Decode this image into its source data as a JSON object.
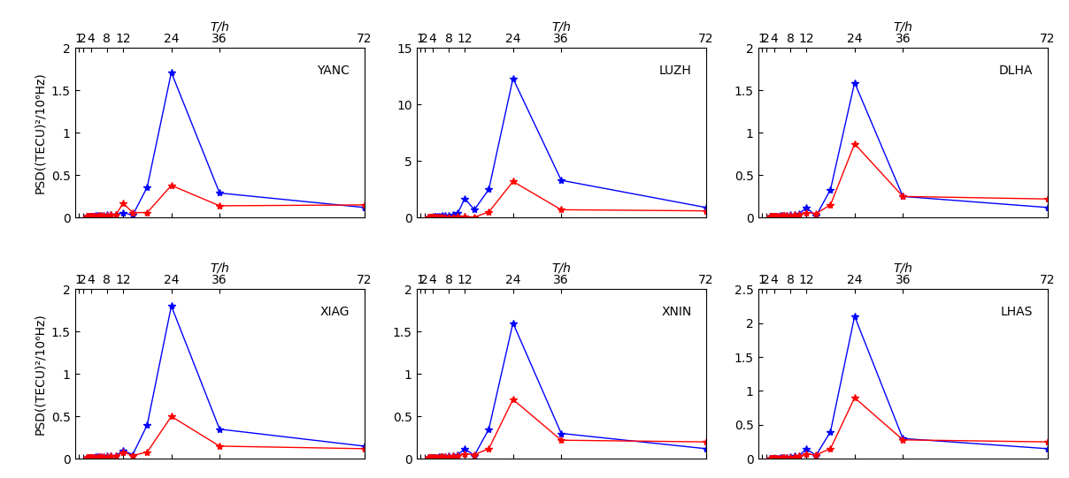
{
  "chart_data": [
    {
      "type": "line",
      "title": "YANC",
      "x_label": "T/h",
      "y_label": "PSD((TECU)²/10⁶Hz)",
      "x": [
        72,
        36,
        24,
        18,
        14.4,
        12,
        10.29,
        9,
        8,
        7.2,
        6.55,
        6,
        5.54,
        5.14,
        4.8,
        4.5,
        4.24,
        4,
        3.79,
        3.6,
        3.43,
        3.27,
        3.13,
        3
      ],
      "xlim": [
        0,
        72
      ],
      "xticks": [
        1,
        2,
        4,
        8,
        12,
        24,
        36,
        72
      ],
      "ylim": [
        0,
        2
      ],
      "yticks": [
        0,
        0.5,
        1,
        1.5,
        2
      ],
      "series": [
        {
          "color": "#0000ff",
          "marker": "*",
          "values": [
            0.12,
            0.29,
            1.71,
            0.36,
            0.03,
            0.06,
            0.04,
            0.03,
            0.03,
            0.02,
            0.02,
            0.02,
            0.02,
            0.02,
            0.01,
            0.01,
            0.01,
            0.01,
            0.01,
            0.01,
            0.01,
            0.01,
            0.01,
            0.01
          ]
        },
        {
          "color": "#ff0000",
          "marker": "*",
          "values": [
            0.15,
            0.14,
            0.38,
            0.06,
            0.06,
            0.17,
            0.04,
            0.03,
            0.02,
            0.02,
            0.02,
            0.02,
            0.01,
            0.01,
            0.01,
            0.01,
            0.01,
            0.01,
            0.01,
            0.01,
            0.01,
            0.01,
            0.01,
            0.01
          ]
        }
      ]
    },
    {
      "type": "line",
      "title": "LUZH",
      "x_label": "T/h",
      "x": [
        72,
        36,
        24,
        18,
        14.4,
        12,
        10.29,
        9,
        8,
        7.2,
        6.55,
        6,
        5.54,
        5.14,
        4.8,
        4.5,
        4.24,
        4,
        3.79,
        3.6,
        3.43,
        3.27,
        3.13,
        3
      ],
      "xlim": [
        0,
        72
      ],
      "xticks": [
        1,
        2,
        4,
        8,
        12,
        24,
        36,
        72
      ],
      "ylim": [
        0,
        15
      ],
      "yticks": [
        0,
        5,
        10,
        15
      ],
      "series": [
        {
          "color": "#0000ff",
          "marker": "*",
          "values": [
            0.9,
            3.3,
            12.3,
            2.5,
            0.7,
            1.7,
            0.4,
            0.3,
            0.2,
            0.2,
            0.15,
            0.12,
            0.1,
            0.1,
            0.08,
            0.08,
            0.06,
            0.06,
            0.05,
            0.05,
            0.04,
            0.04,
            0.04,
            0.03
          ]
        },
        {
          "color": "#ff0000",
          "marker": "*",
          "values": [
            0.6,
            0.7,
            3.2,
            0.5,
            0.05,
            0.1,
            0.08,
            0.06,
            0.05,
            0.05,
            0.04,
            0.04,
            0.03,
            0.03,
            0.03,
            0.03,
            0.02,
            0.02,
            0.02,
            0.02,
            0.02,
            0.02,
            0.02,
            0.02
          ]
        }
      ]
    },
    {
      "type": "line",
      "title": "DLHA",
      "x_label": "T/h",
      "x": [
        72,
        36,
        24,
        18,
        14.4,
        12,
        10.29,
        9,
        8,
        7.2,
        6.55,
        6,
        5.54,
        5.14,
        4.8,
        4.5,
        4.24,
        4,
        3.79,
        3.6,
        3.43,
        3.27,
        3.13,
        3
      ],
      "xlim": [
        0,
        72
      ],
      "xticks": [
        1,
        2,
        4,
        8,
        12,
        24,
        36,
        72
      ],
      "ylim": [
        0,
        2
      ],
      "yticks": [
        0,
        0.5,
        1,
        1.5,
        2
      ],
      "series": [
        {
          "color": "#0000ff",
          "marker": "*",
          "values": [
            0.12,
            0.25,
            1.59,
            0.33,
            0.02,
            0.12,
            0.05,
            0.03,
            0.03,
            0.02,
            0.02,
            0.02,
            0.02,
            0.01,
            0.01,
            0.01,
            0.01,
            0.01,
            0.01,
            0.01,
            0.01,
            0.01,
            0.01,
            0.01
          ]
        },
        {
          "color": "#ff0000",
          "marker": "*",
          "values": [
            0.22,
            0.25,
            0.87,
            0.15,
            0.05,
            0.06,
            0.04,
            0.03,
            0.02,
            0.02,
            0.02,
            0.02,
            0.01,
            0.01,
            0.01,
            0.01,
            0.01,
            0.01,
            0.01,
            0.01,
            0.01,
            0.01,
            0.01,
            0.01
          ]
        }
      ]
    },
    {
      "type": "line",
      "title": "XIAG",
      "x_label": "T/h",
      "y_label": "PSD((TECU)²/10⁶Hz)",
      "x": [
        72,
        36,
        24,
        18,
        14.4,
        12,
        10.29,
        9,
        8,
        7.2,
        6.55,
        6,
        5.54,
        5.14,
        4.8,
        4.5,
        4.24,
        4,
        3.79,
        3.6,
        3.43,
        3.27,
        3.13,
        3
      ],
      "xlim": [
        0,
        72
      ],
      "xticks": [
        1,
        2,
        4,
        8,
        12,
        24,
        36,
        72
      ],
      "ylim": [
        0,
        2
      ],
      "yticks": [
        0,
        0.5,
        1,
        1.5,
        2
      ],
      "series": [
        {
          "color": "#0000ff",
          "marker": "*",
          "values": [
            0.15,
            0.35,
            1.8,
            0.4,
            0.05,
            0.1,
            0.04,
            0.03,
            0.03,
            0.02,
            0.02,
            0.02,
            0.02,
            0.02,
            0.01,
            0.01,
            0.01,
            0.01,
            0.01,
            0.01,
            0.01,
            0.01,
            0.01,
            0.01
          ]
        },
        {
          "color": "#ff0000",
          "marker": "*",
          "values": [
            0.12,
            0.15,
            0.5,
            0.08,
            0.04,
            0.08,
            0.03,
            0.03,
            0.02,
            0.02,
            0.02,
            0.02,
            0.01,
            0.01,
            0.01,
            0.01,
            0.01,
            0.01,
            0.01,
            0.01,
            0.01,
            0.01,
            0.01,
            0.01
          ]
        }
      ]
    },
    {
      "type": "line",
      "title": "XNIN",
      "x_label": "T/h",
      "x": [
        72,
        36,
        24,
        18,
        14.4,
        12,
        10.29,
        9,
        8,
        7.2,
        6.55,
        6,
        5.54,
        5.14,
        4.8,
        4.5,
        4.24,
        4,
        3.79,
        3.6,
        3.43,
        3.27,
        3.13,
        3
      ],
      "xlim": [
        0,
        72
      ],
      "xticks": [
        1,
        2,
        4,
        8,
        12,
        24,
        36,
        72
      ],
      "ylim": [
        0,
        2
      ],
      "yticks": [
        0,
        0.5,
        1,
        1.5,
        2
      ],
      "series": [
        {
          "color": "#0000ff",
          "marker": "*",
          "values": [
            0.12,
            0.3,
            1.6,
            0.35,
            0.04,
            0.12,
            0.05,
            0.03,
            0.03,
            0.02,
            0.02,
            0.02,
            0.02,
            0.01,
            0.01,
            0.01,
            0.01,
            0.01,
            0.01,
            0.01,
            0.01,
            0.01,
            0.01,
            0.01
          ]
        },
        {
          "color": "#ff0000",
          "marker": "*",
          "values": [
            0.2,
            0.22,
            0.7,
            0.12,
            0.05,
            0.06,
            0.04,
            0.03,
            0.02,
            0.02,
            0.02,
            0.02,
            0.01,
            0.01,
            0.01,
            0.01,
            0.01,
            0.01,
            0.01,
            0.01,
            0.01,
            0.01,
            0.01,
            0.01
          ]
        }
      ]
    },
    {
      "type": "line",
      "title": "LHAS",
      "x_label": "T/h",
      "x": [
        72,
        36,
        24,
        18,
        14.4,
        12,
        10.29,
        9,
        8,
        7.2,
        6.55,
        6,
        5.54,
        5.14,
        4.8,
        4.5,
        4.24,
        4,
        3.79,
        3.6,
        3.43,
        3.27,
        3.13,
        3
      ],
      "xlim": [
        0,
        72
      ],
      "xticks": [
        1,
        2,
        4,
        8,
        12,
        24,
        36,
        72
      ],
      "ylim": [
        0,
        2.5
      ],
      "yticks": [
        0,
        0.5,
        1,
        1.5,
        2,
        2.5
      ],
      "series": [
        {
          "color": "#0000ff",
          "marker": "*",
          "values": [
            0.15,
            0.3,
            2.1,
            0.4,
            0.05,
            0.15,
            0.05,
            0.04,
            0.03,
            0.02,
            0.02,
            0.02,
            0.02,
            0.01,
            0.01,
            0.01,
            0.01,
            0.01,
            0.01,
            0.01,
            0.01,
            0.01,
            0.01,
            0.01
          ]
        },
        {
          "color": "#ff0000",
          "marker": "*",
          "values": [
            0.25,
            0.28,
            0.9,
            0.15,
            0.06,
            0.07,
            0.04,
            0.03,
            0.02,
            0.02,
            0.02,
            0.02,
            0.01,
            0.01,
            0.01,
            0.01,
            0.01,
            0.01,
            0.01,
            0.01,
            0.01,
            0.01,
            0.01,
            0.01
          ]
        }
      ]
    }
  ]
}
